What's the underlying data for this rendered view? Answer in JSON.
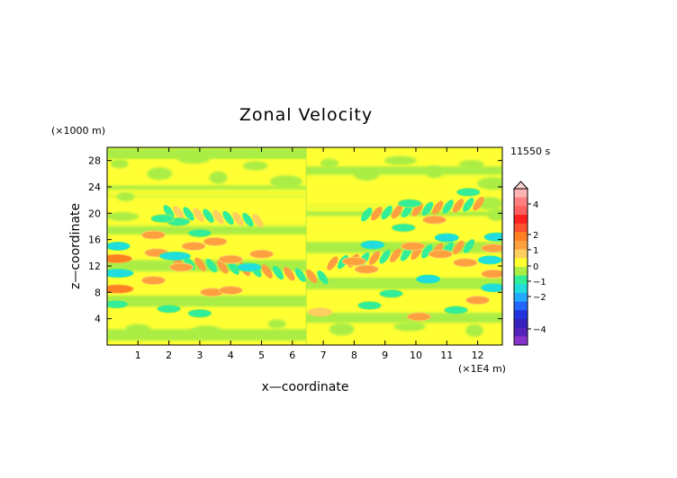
{
  "chart_data": {
    "type": "heatmap",
    "title": "Zonal Velocity",
    "xlabel": "x—coordinate",
    "ylabel": "z—coordinate",
    "x_unit": "(×1E4 m)",
    "y_unit": "(×1000 m)",
    "time_label": "11550 s",
    "x_ticks": [
      1,
      2,
      3,
      4,
      5,
      6,
      7,
      8,
      9,
      10,
      11,
      12
    ],
    "y_ticks": [
      4,
      8,
      12,
      16,
      20,
      24,
      28
    ],
    "xlim": [
      0,
      12.8
    ],
    "ylim": [
      0,
      30
    ],
    "colorbar": {
      "tick_labels": [
        "4",
        "2",
        "1",
        "0",
        "−1",
        "−2",
        "−4"
      ],
      "tick_values": [
        4,
        2,
        1,
        0,
        -1,
        -2,
        -4
      ],
      "levels": [
        {
          "value": 4.5,
          "color": "#ffb2b2"
        },
        {
          "value": 4.0,
          "color": "#ff8080"
        },
        {
          "value": 3.0,
          "color": "#ff6060"
        },
        {
          "value": 2.5,
          "color": "#ff2020"
        },
        {
          "value": 2.0,
          "color": "#ff5030"
        },
        {
          "value": 1.5,
          "color": "#ff8020"
        },
        {
          "value": 1.0,
          "color": "#ffa040"
        },
        {
          "value": 0.6,
          "color": "#ffd060"
        },
        {
          "value": 0.25,
          "color": "#ffff33"
        },
        {
          "value": -0.25,
          "color": "#aaee44"
        },
        {
          "value": -0.6,
          "color": "#33ee99"
        },
        {
          "value": -1.0,
          "color": "#22dddd"
        },
        {
          "value": -1.5,
          "color": "#22aaff"
        },
        {
          "value": -2.0,
          "color": "#2266ff"
        },
        {
          "value": -2.5,
          "color": "#2233dd"
        },
        {
          "value": -3.0,
          "color": "#3322bb"
        },
        {
          "value": -4.0,
          "color": "#5522bb"
        },
        {
          "value": -5.0,
          "color": "#8833cc"
        }
      ]
    },
    "features": [
      {
        "x": 0.35,
        "z": 8.5,
        "value": 1.3
      },
      {
        "x": 0.35,
        "z": 10.9,
        "value": -1.1
      },
      {
        "x": 0.3,
        "z": 13.1,
        "value": 1.2
      },
      {
        "x": 0.35,
        "z": 15.0,
        "value": -1.0
      },
      {
        "x": 0.3,
        "z": 6.2,
        "value": -0.8
      },
      {
        "x": 1.5,
        "z": 9.8,
        "value": 0.9
      },
      {
        "x": 1.6,
        "z": 14.0,
        "value": 0.9
      },
      {
        "x": 1.5,
        "z": 16.7,
        "value": 0.8
      },
      {
        "x": 2.2,
        "z": 13.5,
        "value": -1.1
      },
      {
        "x": 2.8,
        "z": 15.0,
        "value": 1.0
      },
      {
        "x": 3.0,
        "z": 17.0,
        "value": -0.9
      },
      {
        "x": 3.5,
        "z": 15.7,
        "value": 1.0
      },
      {
        "x": 2.3,
        "z": 18.7,
        "value": -0.8
      },
      {
        "x": 3.4,
        "z": 8.0,
        "value": 0.9
      },
      {
        "x": 3.0,
        "z": 4.8,
        "value": -0.9
      },
      {
        "x": 4.6,
        "z": 11.8,
        "value": -1.0
      },
      {
        "x": 5.0,
        "z": 13.8,
        "value": 1.0
      },
      {
        "x": 4.0,
        "z": 13.0,
        "value": 0.9
      },
      {
        "x": 4.0,
        "z": 8.3,
        "value": 0.8
      },
      {
        "x": 2.0,
        "z": 5.5,
        "value": -0.8
      },
      {
        "x": 1.8,
        "z": 19.2,
        "value": -0.7
      },
      {
        "x": 2.4,
        "z": 11.8,
        "value": 0.8
      },
      {
        "x": 8.0,
        "z": 12.7,
        "value": 0.9
      },
      {
        "x": 8.6,
        "z": 15.2,
        "value": -1.0
      },
      {
        "x": 8.4,
        "z": 11.5,
        "value": 0.8
      },
      {
        "x": 9.6,
        "z": 17.8,
        "value": -0.9
      },
      {
        "x": 9.9,
        "z": 15.0,
        "value": 0.9
      },
      {
        "x": 10.6,
        "z": 19.0,
        "value": 0.9
      },
      {
        "x": 11.0,
        "z": 16.3,
        "value": -1.0
      },
      {
        "x": 10.4,
        "z": 10.0,
        "value": -1.0
      },
      {
        "x": 10.8,
        "z": 13.8,
        "value": 1.0
      },
      {
        "x": 11.6,
        "z": 12.5,
        "value": 0.9
      },
      {
        "x": 12.5,
        "z": 8.7,
        "value": -1.0
      },
      {
        "x": 12.4,
        "z": 12.9,
        "value": -1.0
      },
      {
        "x": 12.5,
        "z": 14.7,
        "value": 1.0
      },
      {
        "x": 12.6,
        "z": 16.4,
        "value": -1.0
      },
      {
        "x": 12.5,
        "z": 10.8,
        "value": 1.0
      },
      {
        "x": 12.0,
        "z": 6.8,
        "value": 0.9
      },
      {
        "x": 11.3,
        "z": 5.3,
        "value": -0.8
      },
      {
        "x": 10.1,
        "z": 4.3,
        "value": 0.8
      },
      {
        "x": 9.2,
        "z": 7.8,
        "value": -0.8
      },
      {
        "x": 8.5,
        "z": 6.0,
        "value": -0.7
      },
      {
        "x": 11.7,
        "z": 23.2,
        "value": -0.7
      },
      {
        "x": 9.8,
        "z": 21.5,
        "value": -0.6
      },
      {
        "x": 6.9,
        "z": 5.0,
        "value": 0.6
      }
    ]
  }
}
